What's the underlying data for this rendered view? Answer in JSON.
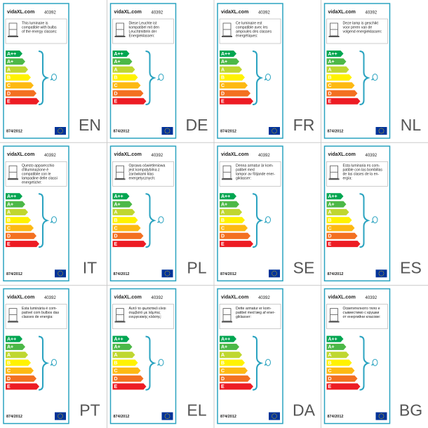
{
  "brand": "vidaXL.com",
  "product_code": "40392",
  "regulation": "874/2012",
  "classes": [
    "A++",
    "A+",
    "A",
    "B",
    "C",
    "D",
    "E"
  ],
  "labels": [
    {
      "lang": "EN",
      "text": [
        "This luminaire is",
        "compatible with bulbs",
        "of the energy classes:"
      ]
    },
    {
      "lang": "DE",
      "text": [
        "Diese Leuchte ist",
        "kompatibel mit den",
        "Leuchtmitteln der",
        "Energieklassen:"
      ]
    },
    {
      "lang": "FR",
      "text": [
        "Ce luminaire est",
        "compatible avec les",
        "ampoules des classes",
        "énergétiques:"
      ]
    },
    {
      "lang": "NL",
      "text": [
        "Deze lamp is geschikt",
        "voor peren van de",
        "volgend energieklassen:"
      ]
    },
    {
      "lang": "IT",
      "text": [
        "Questo apparecchio",
        "d'illuminazione è",
        "compatibile con le",
        "lampadine delle classi",
        "energetiche:"
      ]
    },
    {
      "lang": "PL",
      "text": [
        "Oprawa oświetleniowa",
        "jest kompatybilna z",
        "żarówkami klas",
        "energetycznych:"
      ]
    },
    {
      "lang": "SE",
      "text": [
        "Denna armatur är kom-",
        "patibel med",
        "lampor av följande ener-",
        "giklasser:"
      ]
    },
    {
      "lang": "ES",
      "text": [
        "Esta luminaria es com-",
        "patible con las bombillas",
        "de las clases de la en-",
        "ergía:"
      ]
    },
    {
      "lang": "PT",
      "text": [
        "Esta luminária é com-",
        "patível com bulbos das",
        "classes de energia:"
      ]
    },
    {
      "lang": "EL",
      "text": [
        "Αυτό το φωτιστικό είναι",
        "συμβατό με λάμπες",
        "ενεργειακής κλάσης:"
      ]
    },
    {
      "lang": "DA",
      "text": [
        "Dette armatur er kom-",
        "patibel med læg af ener-",
        "giklasser:"
      ]
    },
    {
      "lang": "BG",
      "text": [
        "Осветителното тяло е",
        "съвместимо с крушки",
        "от енергийни класове:"
      ]
    }
  ]
}
